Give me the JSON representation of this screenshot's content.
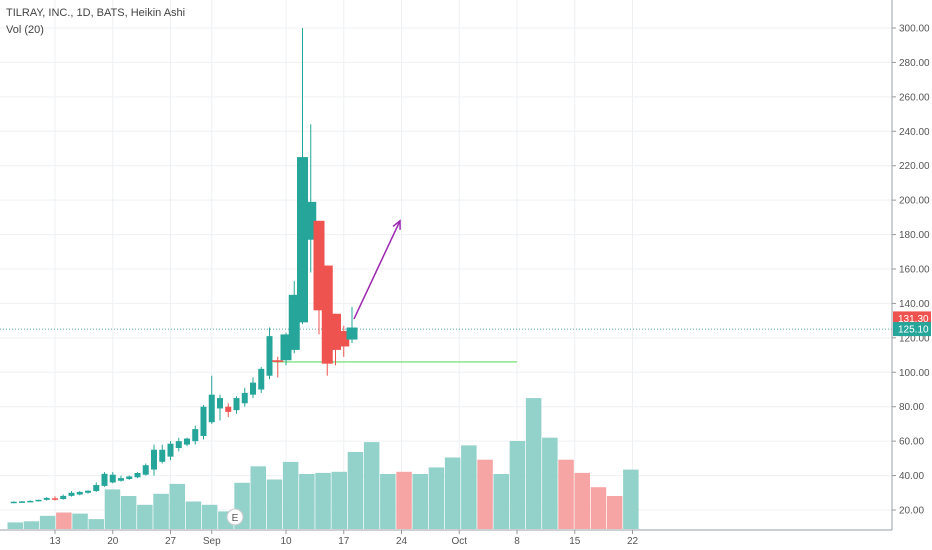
{
  "header": {
    "title": "TILRAY, INC., 1D, BATS, Heikin Ashi",
    "volume_indicator": "Vol (20)"
  },
  "colors": {
    "up": "#26a69a",
    "down": "#ef5350",
    "vol_up": "#93d1cb",
    "vol_down": "#f6a5a4",
    "arrow": "#9c27b0",
    "support_line": "#66dd66",
    "price_line": "#5aa9a0"
  },
  "chart_data": {
    "type": "candlestick",
    "title": "TILRAY, INC., 1D, BATS, Heikin Ashi",
    "xlabel": "",
    "ylabel": "",
    "y_ticks": [
      "20.00",
      "40.00",
      "60.00",
      "80.00",
      "100.00",
      "120.00",
      "140.00",
      "160.00",
      "180.00",
      "200.00",
      "220.00",
      "240.00",
      "260.00",
      "280.00",
      "300.00"
    ],
    "ylim": [
      10,
      310
    ],
    "x_ticks": [
      {
        "label": "13",
        "day": 13
      },
      {
        "label": "20",
        "day": 20
      },
      {
        "label": "27",
        "day": 27
      },
      {
        "label": "Sep",
        "day": 32
      },
      {
        "label": "10",
        "day": 41
      },
      {
        "label": "17",
        "day": 48
      },
      {
        "label": "24",
        "day": 55
      },
      {
        "label": "Oct",
        "day": 62
      },
      {
        "label": "8",
        "day": 69
      },
      {
        "label": "15",
        "day": 76
      },
      {
        "label": "22",
        "day": 83
      }
    ],
    "candles": [
      {
        "day": 8,
        "o": 24.5,
        "h": 25.0,
        "l": 24.0,
        "c": 24.8
      },
      {
        "day": 9,
        "o": 24.8,
        "h": 25.2,
        "l": 24.4,
        "c": 25.0
      },
      {
        "day": 10,
        "o": 25.0,
        "h": 25.6,
        "l": 24.6,
        "c": 25.3
      },
      {
        "day": 11,
        "o": 25.3,
        "h": 26.0,
        "l": 25.0,
        "c": 25.9
      },
      {
        "day": 12,
        "o": 25.9,
        "h": 27.5,
        "l": 25.5,
        "c": 27.0
      },
      {
        "day": 13,
        "o": 26.8,
        "h": 28.0,
        "l": 25.5,
        "c": 26.4
      },
      {
        "day": 14,
        "o": 26.4,
        "h": 29.0,
        "l": 26.0,
        "c": 28.2
      },
      {
        "day": 15,
        "o": 28.2,
        "h": 31.0,
        "l": 27.8,
        "c": 30.0
      },
      {
        "day": 16,
        "o": 29.0,
        "h": 31.0,
        "l": 28.5,
        "c": 30.5
      },
      {
        "day": 17,
        "o": 30.0,
        "h": 31.5,
        "l": 29.5,
        "c": 31.2
      },
      {
        "day": 18,
        "o": 31.0,
        "h": 36.0,
        "l": 30.5,
        "c": 34.5
      },
      {
        "day": 19,
        "o": 34.0,
        "h": 42.0,
        "l": 33.5,
        "c": 41.0
      },
      {
        "day": 20,
        "o": 36.0,
        "h": 42.0,
        "l": 35.5,
        "c": 40.5
      },
      {
        "day": 21,
        "o": 37.0,
        "h": 40.0,
        "l": 36.5,
        "c": 38.5
      },
      {
        "day": 22,
        "o": 38.0,
        "h": 40.0,
        "l": 37.5,
        "c": 39.5
      },
      {
        "day": 23,
        "o": 39.0,
        "h": 42.0,
        "l": 38.5,
        "c": 41.5
      },
      {
        "day": 24,
        "o": 40.5,
        "h": 47.0,
        "l": 40.0,
        "c": 46.0
      },
      {
        "day": 25,
        "o": 43.5,
        "h": 58.0,
        "l": 40.0,
        "c": 55.0
      },
      {
        "day": 26,
        "o": 48.0,
        "h": 58.0,
        "l": 47.0,
        "c": 55.0
      },
      {
        "day": 27,
        "o": 51.0,
        "h": 60.0,
        "l": 49.0,
        "c": 58.5
      },
      {
        "day": 28,
        "o": 56.0,
        "h": 62.0,
        "l": 54.0,
        "c": 60.0
      },
      {
        "day": 29,
        "o": 58.0,
        "h": 62.0,
        "l": 57.0,
        "c": 61.5
      },
      {
        "day": 30,
        "o": 60.0,
        "h": 69.0,
        "l": 58.0,
        "c": 67.0
      },
      {
        "day": 31,
        "o": 63.0,
        "h": 81.0,
        "l": 61.0,
        "c": 80.0
      },
      {
        "day": 32,
        "o": 71.0,
        "h": 98.0,
        "l": 70.0,
        "c": 87.0
      },
      {
        "day": 33,
        "o": 79.0,
        "h": 87.0,
        "l": 72.0,
        "c": 85.0
      },
      {
        "day": 34,
        "o": 80.0,
        "h": 82.0,
        "l": 74.0,
        "c": 77.0
      },
      {
        "day": 35,
        "o": 78.0,
        "h": 86.0,
        "l": 76.0,
        "c": 85.0
      },
      {
        "day": 36,
        "o": 82.0,
        "h": 91.0,
        "l": 80.0,
        "c": 88.0
      },
      {
        "day": 37,
        "o": 87.0,
        "h": 97.0,
        "l": 85.0,
        "c": 94.0
      },
      {
        "day": 38,
        "o": 90.0,
        "h": 103.0,
        "l": 88.0,
        "c": 102.0
      },
      {
        "day": 39,
        "o": 98.0,
        "h": 126.0,
        "l": 96.0,
        "c": 121.0
      },
      {
        "day": 40,
        "o": 107.0,
        "h": 109.0,
        "l": 97.0,
        "c": 106.0
      },
      {
        "day": 41,
        "o": 107.0,
        "h": 123.0,
        "l": 104.0,
        "c": 122.0
      },
      {
        "day": 42,
        "o": 113.0,
        "h": 153.0,
        "l": 111.0,
        "c": 145.0
      },
      {
        "day": 43,
        "o": 129.0,
        "h": 300.0,
        "l": 128.0,
        "c": 225.0
      },
      {
        "day": 44,
        "o": 177.0,
        "h": 244.0,
        "l": 158.0,
        "c": 199.0
      },
      {
        "day": 45,
        "o": 188.0,
        "h": 188.0,
        "l": 122.0,
        "c": 136.0
      },
      {
        "day": 46,
        "o": 162.0,
        "h": 162.0,
        "l": 98.0,
        "c": 105.0
      },
      {
        "day": 47,
        "o": 134.0,
        "h": 134.0,
        "l": 104.0,
        "c": 113.0
      },
      {
        "day": 48,
        "o": 124.0,
        "h": 127.0,
        "l": 109.0,
        "c": 115.0
      },
      {
        "day": 49,
        "o": 119.0,
        "h": 138.0,
        "l": 117.0,
        "c": 126.0
      }
    ],
    "volume": [
      {
        "day": 8,
        "v": 0.6,
        "up": true
      },
      {
        "day": 9,
        "v": 0.7,
        "up": true
      },
      {
        "day": 10,
        "v": 1.2,
        "up": true
      },
      {
        "day": 11,
        "v": 1.5,
        "up": false
      },
      {
        "day": 12,
        "v": 1.4,
        "up": true
      },
      {
        "day": 13,
        "v": 0.9,
        "up": true
      },
      {
        "day": 14,
        "v": 3.6,
        "up": true
      },
      {
        "day": 15,
        "v": 3.0,
        "up": true
      },
      {
        "day": 16,
        "v": 2.2,
        "up": true
      },
      {
        "day": 17,
        "v": 3.2,
        "up": true
      },
      {
        "day": 18,
        "v": 4.1,
        "up": true
      },
      {
        "day": 19,
        "v": 2.5,
        "up": true
      },
      {
        "day": 20,
        "v": 2.2,
        "up": true
      },
      {
        "day": 21,
        "v": 1.6,
        "up": true
      },
      {
        "day": 22,
        "v": 4.2,
        "up": true
      },
      {
        "day": 23,
        "v": 5.7,
        "up": true
      },
      {
        "day": 24,
        "v": 4.5,
        "up": true
      },
      {
        "day": 25,
        "v": 6.1,
        "up": true
      },
      {
        "day": 26,
        "v": 5.0,
        "up": true
      },
      {
        "day": 27,
        "v": 5.1,
        "up": true
      },
      {
        "day": 28,
        "v": 5.2,
        "up": true
      },
      {
        "day": 29,
        "v": 7.0,
        "up": true
      },
      {
        "day": 30,
        "v": 7.9,
        "up": true
      },
      {
        "day": 31,
        "v": 5.0,
        "up": true
      },
      {
        "day": 32,
        "v": 5.2,
        "up": false
      },
      {
        "day": 33,
        "v": 5.0,
        "up": true
      },
      {
        "day": 34,
        "v": 5.6,
        "up": true
      },
      {
        "day": 35,
        "v": 6.5,
        "up": true
      },
      {
        "day": 36,
        "v": 7.6,
        "up": true
      },
      {
        "day": 37,
        "v": 6.3,
        "up": false
      },
      {
        "day": 38,
        "v": 5.0,
        "up": true
      },
      {
        "day": 39,
        "v": 8.0,
        "up": true
      },
      {
        "day": 40,
        "v": 11.9,
        "up": true
      },
      {
        "day": 41,
        "v": 8.3,
        "up": true
      },
      {
        "day": 42,
        "v": 6.3,
        "up": false
      },
      {
        "day": 43,
        "v": 5.1,
        "up": false
      },
      {
        "day": 44,
        "v": 3.8,
        "up": false
      },
      {
        "day": 45,
        "v": 3.0,
        "up": false
      },
      {
        "day": 46,
        "v": 5.4,
        "up": true
      }
    ],
    "support_line": {
      "from_day": 40,
      "to_day": 69,
      "price": 106.0
    },
    "arrow": {
      "from_day": 49,
      "from_price": 131.0,
      "to_day": 53,
      "to_price": 188.0
    },
    "current_price_line": 125.1,
    "price_tags": [
      {
        "label": "131.30",
        "price": 131.3,
        "color": "#ef5350"
      },
      {
        "label": "125.10",
        "price": 125.1,
        "color": "#26a69a"
      }
    ],
    "earnings_marker": {
      "label": "E",
      "day": 28
    }
  }
}
